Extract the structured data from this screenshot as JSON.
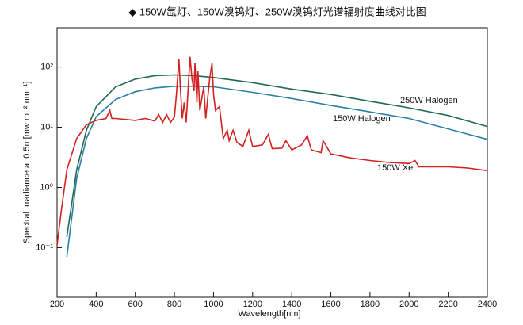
{
  "chart_data": {
    "type": "line",
    "title": "◆ 150W氙灯、150W溴钨灯、250W溴钨灯光谱辐射度曲线对比图",
    "x_label": "Wavelength[nm]",
    "y_label": "Spectral Irradiance at 0.5m[mw m⁻² nm⁻¹]",
    "log_y": true,
    "xlim": [
      200,
      2400
    ],
    "xticks": [
      200,
      400,
      600,
      800,
      1000,
      1200,
      1400,
      1600,
      1800,
      2000,
      2200,
      2400
    ],
    "ylim": [
      0.015,
      450
    ],
    "yticks": [
      {
        "value": 0.1,
        "label": "10⁻¹"
      },
      {
        "value": 1,
        "label": "10⁰"
      },
      {
        "value": 10,
        "label": "10¹"
      },
      {
        "value": 100,
        "label": "10²"
      }
    ],
    "series": [
      {
        "name": "250W Halogen",
        "color": "#1f6b4c",
        "x": [
          250,
          300,
          350,
          400,
          500,
          600,
          700,
          800,
          900,
          1000,
          1200,
          1400,
          1600,
          1800,
          2000,
          2200,
          2400
        ],
        "values": [
          0.15,
          1.95,
          8.9,
          22,
          47,
          63,
          72,
          74,
          72,
          67,
          55,
          43,
          35,
          27,
          21,
          15.7,
          10.3
        ]
      },
      {
        "name": "150W Halogen",
        "color": "#2a7fa8",
        "x": [
          250,
          300,
          350,
          400,
          500,
          600,
          700,
          800,
          900,
          1000,
          1200,
          1400,
          1600,
          1800,
          2000,
          2200,
          2400
        ],
        "values": [
          0.07,
          1.4,
          6.5,
          15,
          29,
          39,
          45,
          48,
          48,
          47,
          38,
          30,
          23,
          18,
          14,
          9.4,
          6.3
        ]
      },
      {
        "name": "150W Xe",
        "color": "#d42020",
        "x": [
          200,
          220,
          250,
          300,
          350,
          400,
          450,
          470,
          480,
          500,
          600,
          650,
          700,
          720,
          740,
          760,
          780,
          800,
          810,
          823,
          830,
          840,
          850,
          860,
          880,
          890,
          900,
          905,
          915,
          920,
          930,
          950,
          960,
          980,
          992,
          1000,
          1010,
          1030,
          1050,
          1070,
          1080,
          1100,
          1120,
          1150,
          1180,
          1200,
          1250,
          1280,
          1300,
          1350,
          1370,
          1400,
          1450,
          1480,
          1500,
          1550,
          1560,
          1600,
          1700,
          1800,
          1900,
          2000,
          2030,
          2050,
          2200,
          2300,
          2400
        ],
        "values": [
          0.11,
          0.37,
          1.95,
          6.5,
          11,
          13,
          14,
          19,
          14,
          14,
          13,
          14,
          12.7,
          16.2,
          12,
          16.2,
          12,
          14.8,
          35,
          135,
          47,
          14,
          25.6,
          12,
          148,
          63,
          40,
          116,
          25.6,
          86,
          19,
          47,
          14,
          63,
          116,
          35,
          19,
          22,
          6.5,
          8.9,
          6,
          8.9,
          5.6,
          4.8,
          8.9,
          4.8,
          5.1,
          7.6,
          4.4,
          4.5,
          6,
          4.2,
          5.1,
          7.2,
          4.2,
          3.8,
          6,
          3.6,
          3.1,
          2.8,
          2.6,
          2.5,
          2.8,
          2.2,
          2.2,
          2.1,
          1.9
        ]
      }
    ]
  }
}
